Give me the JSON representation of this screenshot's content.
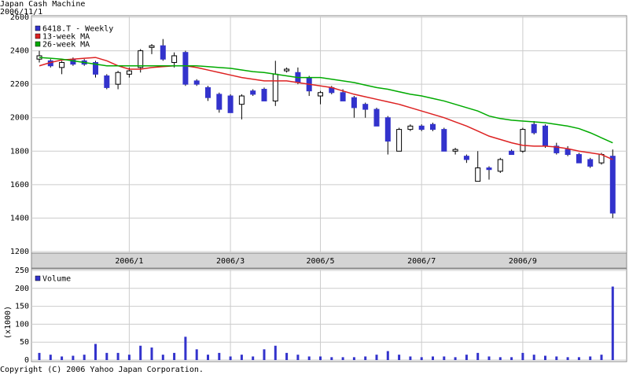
{
  "chart_data": [
    {
      "type": "candlestick",
      "title": "Japan Cash Machine",
      "subtitle": "2006/11/1",
      "name": "6418.T - Weekly",
      "color": "#3333cc",
      "up_color": "#ffffff",
      "down_color": "#3333cc",
      "categories": [
        null,
        null,
        null,
        null,
        null,
        null,
        null,
        null,
        "2006/1",
        null,
        null,
        null,
        null,
        null,
        null,
        null,
        null,
        "2006/3",
        null,
        null,
        null,
        null,
        null,
        null,
        null,
        "2006/5",
        null,
        null,
        null,
        null,
        null,
        null,
        null,
        null,
        "2006/7",
        null,
        null,
        null,
        null,
        null,
        null,
        null,
        null,
        "2006/9",
        null,
        null,
        null,
        null,
        null,
        null,
        null,
        null
      ],
      "open": [
        2350,
        2340,
        2300,
        2350,
        2340,
        2330,
        2250,
        2200,
        2260,
        2300,
        2420,
        2430,
        2330,
        2390,
        2220,
        2180,
        2140,
        2130,
        2080,
        2160,
        2170,
        2100,
        2280,
        2270,
        2240,
        2130,
        2180,
        2150,
        2120,
        2080,
        2050,
        2000,
        1800,
        1930,
        1950,
        1960,
        1930,
        1800,
        1770,
        1620,
        1700,
        1680,
        1800,
        1800,
        1960,
        1950,
        1830,
        1810,
        1780,
        1750,
        1730,
        1770
      ],
      "high": [
        2400,
        2350,
        2340,
        2360,
        2350,
        2340,
        2260,
        2280,
        2300,
        2410,
        2440,
        2470,
        2390,
        2400,
        2230,
        2190,
        2150,
        2140,
        2140,
        2170,
        2180,
        2340,
        2300,
        2300,
        2250,
        2160,
        2190,
        2170,
        2130,
        2090,
        2060,
        2010,
        1940,
        1960,
        1960,
        1970,
        1940,
        1820,
        1780,
        1800,
        1710,
        1760,
        1810,
        1940,
        1980,
        1960,
        1850,
        1830,
        1790,
        1760,
        1790,
        1810
      ],
      "low": [
        2330,
        2300,
        2260,
        2310,
        2310,
        2240,
        2170,
        2170,
        2240,
        2270,
        2380,
        2340,
        2300,
        2190,
        2190,
        2100,
        2030,
        2030,
        1990,
        2130,
        2100,
        2070,
        2270,
        2200,
        2130,
        2080,
        2140,
        2100,
        2000,
        2000,
        1950,
        1780,
        1800,
        1920,
        1920,
        1920,
        1800,
        1780,
        1730,
        1620,
        1630,
        1670,
        1780,
        1790,
        1900,
        1820,
        1780,
        1770,
        1730,
        1700,
        1720,
        1400
      ],
      "close": [
        2370,
        2310,
        2330,
        2320,
        2320,
        2260,
        2180,
        2270,
        2280,
        2400,
        2430,
        2350,
        2370,
        2200,
        2200,
        2120,
        2050,
        2030,
        2130,
        2140,
        2100,
        2260,
        2290,
        2210,
        2160,
        2150,
        2150,
        2100,
        2060,
        2050,
        1950,
        1860,
        1930,
        1950,
        1930,
        1930,
        1800,
        1810,
        1750,
        1700,
        1690,
        1750,
        1780,
        1930,
        1910,
        1830,
        1790,
        1780,
        1730,
        1710,
        1780,
        1430
      ],
      "lines": [
        {
          "name": "13-week MA",
          "color": "#dd2222",
          "values": [
            2310,
            2330,
            2345,
            2350,
            2355,
            2360,
            2340,
            2310,
            2290,
            2290,
            2300,
            2305,
            2310,
            2310,
            2300,
            2285,
            2270,
            2255,
            2240,
            2230,
            2220,
            2220,
            2220,
            2210,
            2200,
            2190,
            2180,
            2160,
            2140,
            2125,
            2110,
            2095,
            2080,
            2060,
            2040,
            2020,
            2000,
            1975,
            1950,
            1920,
            1890,
            1870,
            1850,
            1835,
            1830,
            1830,
            1825,
            1815,
            1800,
            1790,
            1780,
            1750
          ]
        },
        {
          "name": "26-week MA",
          "color": "#00aa00",
          "values": [
            2360,
            2355,
            2350,
            2340,
            2330,
            2320,
            2310,
            2310,
            2310,
            2310,
            2310,
            2310,
            2310,
            2310,
            2310,
            2305,
            2300,
            2295,
            2285,
            2275,
            2270,
            2260,
            2250,
            2240,
            2240,
            2240,
            2230,
            2220,
            2210,
            2195,
            2180,
            2170,
            2155,
            2140,
            2130,
            2115,
            2100,
            2080,
            2060,
            2040,
            2010,
            1995,
            1985,
            1980,
            1975,
            1970,
            1960,
            1950,
            1935,
            1910,
            1880,
            1850
          ]
        }
      ],
      "ylim": [
        1200,
        2600
      ],
      "yticks": [
        1200,
        1400,
        1600,
        1800,
        2000,
        2200,
        2400,
        2600
      ],
      "grid": true
    },
    {
      "type": "bar",
      "name": "Volume",
      "ylabel": "(x1000)",
      "color": "#3333cc",
      "values": [
        20,
        15,
        10,
        12,
        15,
        45,
        20,
        20,
        15,
        40,
        35,
        15,
        20,
        65,
        30,
        15,
        20,
        10,
        15,
        10,
        30,
        40,
        20,
        15,
        10,
        10,
        8,
        8,
        8,
        10,
        15,
        25,
        15,
        10,
        8,
        10,
        10,
        8,
        15,
        20,
        10,
        8,
        8,
        20,
        15,
        12,
        10,
        8,
        8,
        10,
        15,
        205
      ],
      "ylim": [
        0,
        250
      ],
      "yticks": [
        0,
        50,
        100,
        150,
        200,
        250
      ],
      "grid": true
    }
  ],
  "footer": "Copyright (C) 2006 Yahoo Japan Corporation."
}
